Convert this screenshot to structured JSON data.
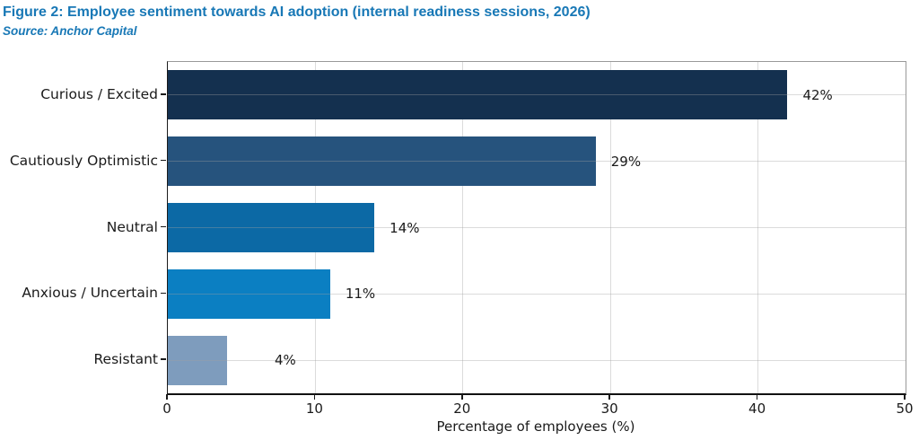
{
  "figure": {
    "title": "Figure 2: Employee sentiment towards AI adoption (internal readiness sessions, 2026)",
    "source": "Source: Anchor Capital",
    "title_color": "#1878b6"
  },
  "chart_data": {
    "type": "bar",
    "orientation": "horizontal",
    "title": "Figure 2: Employee sentiment towards AI adoption (internal readiness sessions, 2026)",
    "subtitle": "Source: Anchor Capital",
    "categories": [
      "Curious / Excited",
      "Cautiously Optimistic",
      "Neutral",
      "Anxious / Uncertain",
      "Resistant"
    ],
    "values": [
      42,
      29,
      14,
      11,
      4
    ],
    "value_labels": [
      "42%",
      "29%",
      "14%",
      "11%",
      "4%"
    ],
    "bar_colors": [
      "#14304f",
      "#26537d",
      "#0c69a5",
      "#0b7fc2",
      "#7e9cbd"
    ],
    "xlabel": "Percentage of employees (%)",
    "ylabel": "",
    "xlim": [
      0,
      50
    ],
    "x_ticks": [
      "0",
      "10",
      "20",
      "30",
      "40",
      "50"
    ],
    "grid": true,
    "legend": false,
    "text_color": "#1a1a1a",
    "grid_color": "#dcdcdc"
  }
}
